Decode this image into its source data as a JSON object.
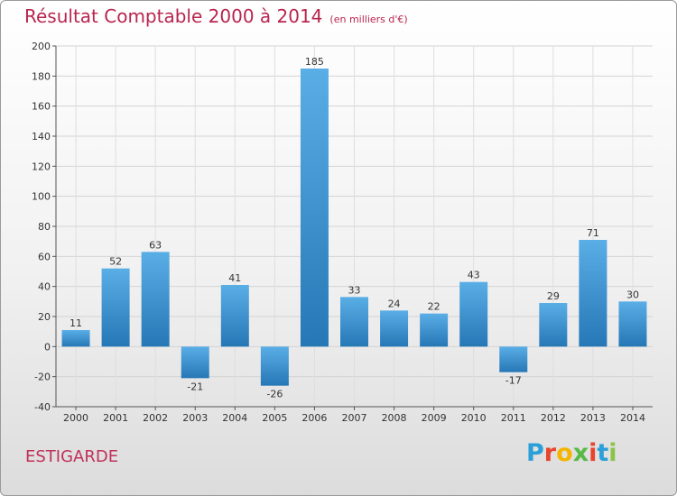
{
  "title": "Résultat Comptable 2000 à 2014",
  "subtitle": "(en milliers d'€)",
  "place": "ESTIGARDE",
  "logo": {
    "letters": [
      "P",
      "r",
      "o",
      "x",
      "i",
      "t",
      "i"
    ],
    "colors": [
      "#2a9fd8",
      "#e8452c",
      "#f4b400",
      "#58b947",
      "#e8452c",
      "#2a9fd8",
      "#8bc34a"
    ]
  },
  "colors": {
    "bar_top": "#5aaee6",
    "bar_bottom": "#2677b6",
    "title": "#b8254f"
  },
  "chart_data": {
    "type": "bar",
    "title": "Résultat Comptable 2000 à 2014",
    "subtitle": "(en milliers d'€)",
    "categories": [
      "2000",
      "2001",
      "2002",
      "2003",
      "2004",
      "2005",
      "2006",
      "2007",
      "2008",
      "2009",
      "2010",
      "2011",
      "2012",
      "2013",
      "2014"
    ],
    "values": [
      11,
      52,
      63,
      -21,
      41,
      -26,
      185,
      33,
      24,
      22,
      43,
      -17,
      29,
      71,
      30
    ],
    "ylim": [
      -40,
      200
    ],
    "yticks": [
      -40,
      -20,
      0,
      20,
      40,
      60,
      80,
      100,
      120,
      140,
      160,
      180,
      200
    ],
    "grid": true
  }
}
